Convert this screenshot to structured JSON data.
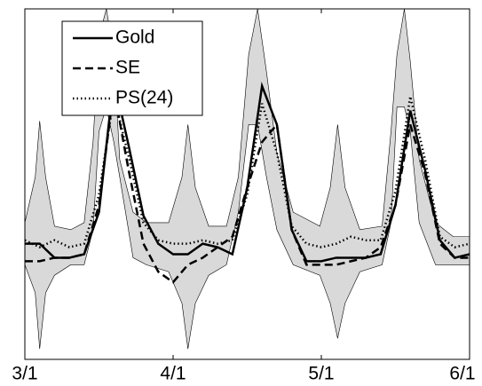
{
  "chart_data": {
    "type": "line",
    "x": [
      0,
      0.1,
      0.2,
      0.3,
      0.4,
      0.5,
      0.6,
      0.7,
      0.8,
      0.9,
      1,
      1.1,
      1.2,
      1.3,
      1.4,
      1.5,
      1.6,
      1.7,
      1.8,
      1.9,
      2,
      2.1,
      2.2,
      2.3,
      2.4,
      2.5,
      2.6,
      2.7,
      2.8,
      2.9,
      3
    ],
    "series": [
      {
        "name": "Gold",
        "color": "#000000",
        "style": "solid",
        "values": [
          33,
          33,
          29,
          29,
          30,
          42,
          80,
          61,
          41,
          33,
          30,
          30,
          33,
          32,
          30,
          49,
          78,
          67,
          37,
          28,
          28,
          29,
          29,
          29,
          30,
          44,
          71,
          54,
          34,
          29,
          30
        ]
      },
      {
        "name": "SE",
        "color": "#000000",
        "style": "dashed",
        "values": [
          28,
          28,
          29,
          29,
          30,
          44,
          77,
          54,
          33,
          25,
          22,
          27,
          29,
          32,
          35,
          49,
          62,
          67,
          37,
          27,
          27,
          27,
          28,
          29,
          32,
          44,
          67,
          53,
          33,
          29,
          29
        ]
      },
      {
        "name": "PS(24)",
        "color": "#000000",
        "style": "dotted",
        "values": [
          34,
          32,
          34,
          32,
          33,
          47,
          75,
          58,
          39,
          34,
          33,
          33,
          34,
          33,
          34,
          47,
          73,
          59,
          38,
          33,
          32,
          33,
          35,
          34,
          34,
          48,
          75,
          57,
          35,
          32,
          33
        ]
      }
    ],
    "band_color": "#d9d9d9",
    "band_x": [
      0,
      0.07,
      0.1,
      0.14,
      0.2,
      0.31,
      0.4,
      0.46,
      0.5,
      0.55,
      0.6,
      0.64,
      0.73,
      0.82,
      0.97,
      1.06,
      1.1,
      1.15,
      1.24,
      1.36,
      1.44,
      1.51,
      1.57,
      1.63,
      1.7,
      1.81,
      1.99,
      2.06,
      2.11,
      2.16,
      2.26,
      2.41,
      2.47,
      2.51,
      2.56,
      2.6,
      2.66,
      2.77,
      2.89,
      3
    ],
    "band_upper": [
      39,
      52,
      68,
      52,
      38,
      37,
      39,
      62,
      92,
      100,
      87,
      57,
      42,
      39,
      39,
      52,
      67,
      49,
      38,
      38,
      52,
      87,
      100,
      82,
      59,
      42,
      38,
      49,
      67,
      49,
      37,
      38,
      65,
      87,
      100,
      85,
      57,
      39,
      35,
      35
    ],
    "band_lower": [
      27,
      19,
      3,
      19,
      24,
      27,
      27,
      37,
      65,
      72,
      62,
      52,
      29,
      27,
      25,
      16,
      3,
      16,
      24,
      27,
      42,
      67,
      67,
      52,
      37,
      27,
      24,
      16,
      6,
      16,
      25,
      27,
      39,
      72,
      72,
      65,
      39,
      27,
      27,
      27
    ],
    "xlim": [
      0,
      3
    ],
    "xticks": [
      {
        "value": 0,
        "label": "3/1"
      },
      {
        "value": 1,
        "label": "4/1"
      },
      {
        "value": 2,
        "label": "5/1"
      },
      {
        "value": 3,
        "label": "6/1"
      }
    ],
    "ylim": [
      0,
      100
    ],
    "legend": "top-left"
  }
}
